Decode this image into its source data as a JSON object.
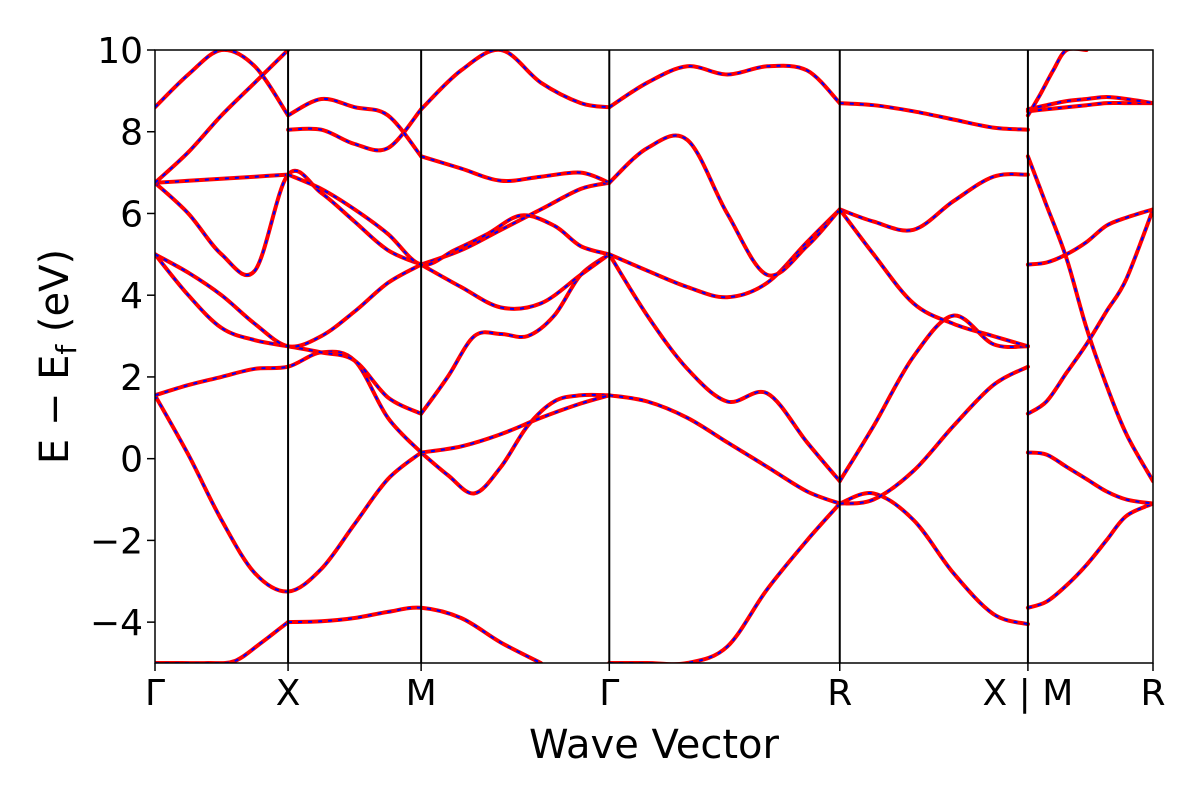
{
  "chart_data": {
    "type": "line",
    "xlabel": "Wave Vector",
    "ylabel": "E − E",
    "ylabel_sub": "f",
    "ylabel_unit": " (eV)",
    "ylim": [
      -5,
      10
    ],
    "yticks": [
      -4,
      -2,
      0,
      2,
      4,
      6,
      8,
      10
    ],
    "ytick_labels": [
      "−4",
      "−2",
      "0",
      "2",
      "4",
      "6",
      "8",
      "10"
    ],
    "grid": false,
    "legend": "none",
    "xlim": [
      0,
      7.5
    ],
    "kpoints": [
      {
        "label": "Γ",
        "x": 0
      },
      {
        "label": "X",
        "x": 1
      },
      {
        "label": "M",
        "x": 2
      },
      {
        "label": "Γ",
        "x": 3.414
      },
      {
        "label": "R",
        "x": 5.146
      },
      {
        "label": "X | M",
        "x": 6.56
      },
      {
        "label": "R",
        "x": 7.5
      }
    ],
    "series_style": {
      "primary_color": "#ff0000",
      "overlay_color": "#0000ff",
      "overlay": "dashed"
    },
    "bands": [
      {
        "x": [
          0,
          0.2,
          0.4,
          0.6,
          0.8,
          1.0
        ],
        "y": [
          -5.0,
          -5.0,
          -5.0,
          -4.95,
          -4.5,
          -4.0
        ]
      },
      {
        "x": [
          1.0,
          1.25,
          1.5,
          1.75,
          2.0,
          2.3,
          2.6,
          2.9
        ],
        "y": [
          -4.0,
          -3.98,
          -3.9,
          -3.75,
          -3.65,
          -3.9,
          -4.5,
          -5.0
        ]
      },
      {
        "x": [
          0,
          0.25,
          0.5,
          0.75,
          1.0,
          1.25,
          1.5,
          1.75,
          2.0
        ],
        "y": [
          1.55,
          0.1,
          -1.5,
          -2.8,
          -3.25,
          -2.7,
          -1.6,
          -0.5,
          0.15
        ]
      },
      {
        "x": [
          2.0,
          2.2,
          2.4,
          2.6,
          2.8,
          3.0,
          3.2,
          3.414
        ],
        "y": [
          0.15,
          -0.4,
          -0.85,
          -0.2,
          0.8,
          1.4,
          1.55,
          1.55
        ]
      },
      {
        "x": [
          0,
          0.25,
          0.5,
          0.75,
          1.0,
          1.25,
          1.5,
          1.75,
          2.0
        ],
        "y": [
          1.55,
          1.8,
          2.0,
          2.2,
          2.25,
          2.6,
          2.4,
          1.0,
          0.15
        ]
      },
      {
        "x": [
          2.0,
          2.3,
          2.6,
          2.9,
          3.2,
          3.414
        ],
        "y": [
          0.15,
          0.3,
          0.6,
          1.0,
          1.35,
          1.55
        ]
      },
      {
        "x": [
          0,
          0.25,
          0.5,
          0.75,
          1.0,
          1.25,
          1.5,
          1.75,
          2.0
        ],
        "y": [
          5.0,
          4.0,
          3.2,
          2.9,
          2.75,
          2.6,
          2.4,
          1.5,
          1.1
        ]
      },
      {
        "x": [
          2.0,
          2.2,
          2.4,
          2.6,
          2.8,
          3.0,
          3.2,
          3.414
        ],
        "y": [
          1.1,
          2.0,
          3.0,
          3.05,
          3.0,
          3.5,
          4.5,
          5.0
        ]
      },
      {
        "x": [
          0,
          0.25,
          0.5,
          0.75,
          1.0,
          1.25,
          1.5,
          1.75,
          2.0
        ],
        "y": [
          5.0,
          4.55,
          4.0,
          3.3,
          2.75,
          3.0,
          3.6,
          4.3,
          4.75
        ]
      },
      {
        "x": [
          2.0,
          2.3,
          2.6,
          2.9,
          3.2,
          3.414
        ],
        "y": [
          4.75,
          4.2,
          3.7,
          3.8,
          4.5,
          5.0
        ]
      },
      {
        "x": [
          0,
          0.25,
          0.5,
          0.75,
          1.0,
          1.25,
          1.5,
          1.75,
          2.0
        ],
        "y": [
          6.75,
          6.0,
          5.0,
          4.6,
          6.95,
          6.5,
          5.8,
          5.1,
          4.75
        ]
      },
      {
        "x": [
          2.0,
          2.3,
          2.6,
          2.9,
          3.2,
          3.414
        ],
        "y": [
          4.75,
          5.1,
          5.6,
          6.1,
          6.6,
          6.75
        ]
      },
      {
        "x": [
          0,
          0.25,
          0.5,
          0.75,
          1.0
        ],
        "y": [
          6.75,
          6.8,
          6.85,
          6.9,
          6.95
        ]
      },
      {
        "x": [
          1.0,
          1.25,
          1.5,
          1.75,
          2.0,
          2.25,
          2.5,
          2.75,
          3.0,
          3.2,
          3.414
        ],
        "y": [
          6.95,
          6.6,
          6.1,
          5.5,
          4.75,
          5.1,
          5.5,
          5.95,
          5.7,
          5.2,
          5.0
        ]
      },
      {
        "x": [
          0,
          0.25,
          0.5,
          0.75,
          1.0
        ],
        "y": [
          8.6,
          9.4,
          10.0,
          9.6,
          8.4
        ]
      },
      {
        "x": [
          0,
          0.25,
          0.5,
          0.75,
          1.0
        ],
        "y": [
          6.75,
          7.5,
          8.4,
          9.2,
          10.0
        ]
      },
      {
        "x": [
          1.0,
          1.25,
          1.5,
          1.75,
          2.0
        ],
        "y": [
          8.05,
          8.05,
          7.7,
          7.6,
          8.55
        ]
      },
      {
        "x": [
          1.0,
          1.25,
          1.5,
          1.75,
          2.0
        ],
        "y": [
          8.4,
          8.8,
          8.6,
          8.4,
          7.4
        ]
      },
      {
        "x": [
          2.0,
          2.3,
          2.6,
          2.9,
          3.2,
          3.414
        ],
        "y": [
          7.4,
          7.1,
          6.8,
          6.9,
          7.0,
          6.75
        ]
      },
      {
        "x": [
          2.0,
          2.3,
          2.6,
          2.9,
          3.2,
          3.414
        ],
        "y": [
          8.55,
          9.5,
          10.0,
          9.2,
          8.7,
          8.6
        ]
      },
      {
        "x": [
          3.414,
          3.7,
          4.0,
          4.3,
          4.6,
          4.9,
          5.146
        ],
        "y": [
          5.0,
          3.5,
          2.2,
          1.4,
          1.6,
          0.4,
          -0.55
        ]
      },
      {
        "x": [
          3.414,
          3.7,
          4.0,
          4.3,
          4.6,
          4.9,
          5.146
        ],
        "y": [
          1.55,
          1.4,
          1.0,
          0.4,
          -0.2,
          -0.8,
          -1.1
        ]
      },
      {
        "x": [
          3.414,
          3.7,
          4.0,
          4.3,
          4.6,
          4.9,
          5.146
        ],
        "y": [
          -5.0,
          -5.0,
          -5.0,
          -4.6,
          -3.2,
          -2.0,
          -1.1
        ]
      },
      {
        "x": [
          3.414,
          3.7,
          4.0,
          4.3,
          4.6,
          4.9,
          5.146
        ],
        "y": [
          5.0,
          4.6,
          4.2,
          3.95,
          4.3,
          5.3,
          6.1
        ]
      },
      {
        "x": [
          3.414,
          3.7,
          4.0,
          4.3,
          4.6,
          4.9,
          5.146
        ],
        "y": [
          6.75,
          7.6,
          7.8,
          6.0,
          4.5,
          5.2,
          6.1
        ]
      },
      {
        "x": [
          3.414,
          3.7,
          4.0,
          4.3,
          4.6,
          4.9,
          5.146
        ],
        "y": [
          8.6,
          9.2,
          9.6,
          9.4,
          9.6,
          9.5,
          8.7
        ]
      },
      {
        "x": [
          5.146,
          5.4,
          5.7,
          6.0,
          6.3,
          6.56
        ],
        "y": [
          -1.1,
          -0.85,
          -1.5,
          -2.8,
          -3.8,
          -4.05
        ]
      },
      {
        "x": [
          5.146,
          5.4,
          5.7,
          6.0,
          6.3,
          6.56
        ],
        "y": [
          -1.1,
          -1.0,
          -0.3,
          0.8,
          1.8,
          2.25
        ]
      },
      {
        "x": [
          5.146,
          5.4,
          5.7,
          6.0,
          6.3,
          6.56
        ],
        "y": [
          -0.55,
          0.8,
          2.5,
          3.5,
          2.8,
          2.75
        ]
      },
      {
        "x": [
          5.146,
          5.4,
          5.7,
          6.0,
          6.3,
          6.56
        ],
        "y": [
          6.1,
          5.8,
          5.6,
          6.3,
          6.9,
          6.95
        ]
      },
      {
        "x": [
          5.146,
          5.4,
          5.7,
          6.0,
          6.3,
          6.56
        ],
        "y": [
          6.1,
          5.0,
          3.8,
          3.3,
          3.0,
          2.75
        ]
      },
      {
        "x": [
          5.146,
          5.4,
          5.7,
          6.0,
          6.3,
          6.56
        ],
        "y": [
          8.7,
          8.65,
          8.5,
          8.3,
          8.1,
          8.05
        ]
      },
      {
        "x": [
          6.56,
          6.7,
          6.85,
          7.0,
          7.15,
          7.3,
          7.5
        ],
        "y": [
          -3.65,
          -3.5,
          -3.1,
          -2.6,
          -2.0,
          -1.4,
          -1.1
        ]
      },
      {
        "x": [
          6.56,
          6.7,
          6.85,
          7.0,
          7.15,
          7.3,
          7.5
        ],
        "y": [
          0.15,
          0.1,
          -0.2,
          -0.5,
          -0.8,
          -1.0,
          -1.1
        ]
      },
      {
        "x": [
          6.56,
          6.7,
          6.85,
          7.0,
          7.15,
          7.3,
          7.5
        ],
        "y": [
          1.1,
          1.4,
          2.1,
          2.8,
          3.6,
          4.4,
          6.1
        ]
      },
      {
        "x": [
          6.56,
          6.7,
          6.85,
          7.0,
          7.15,
          7.3,
          7.5
        ],
        "y": [
          4.75,
          4.8,
          5.0,
          5.3,
          5.7,
          5.9,
          6.1
        ]
      },
      {
        "x": [
          6.56,
          6.7,
          6.85,
          7.0,
          7.15,
          7.3,
          7.5
        ],
        "y": [
          7.4,
          6.2,
          4.9,
          3.2,
          1.8,
          0.6,
          -0.55
        ]
      },
      {
        "x": [
          6.56,
          6.7,
          6.85,
          7.0,
          7.15,
          7.3,
          7.5
        ],
        "y": [
          8.5,
          8.55,
          8.6,
          8.65,
          8.7,
          8.7,
          8.7
        ]
      },
      {
        "x": [
          6.56,
          6.7,
          6.85,
          7.0,
          7.15,
          7.3,
          7.5
        ],
        "y": [
          8.55,
          8.65,
          8.75,
          8.8,
          8.85,
          8.8,
          8.7
        ]
      },
      {
        "x": [
          6.56,
          6.65,
          6.75,
          6.85,
          7.0
        ],
        "y": [
          8.4,
          8.9,
          9.5,
          10.0,
          10.0
        ]
      }
    ]
  }
}
